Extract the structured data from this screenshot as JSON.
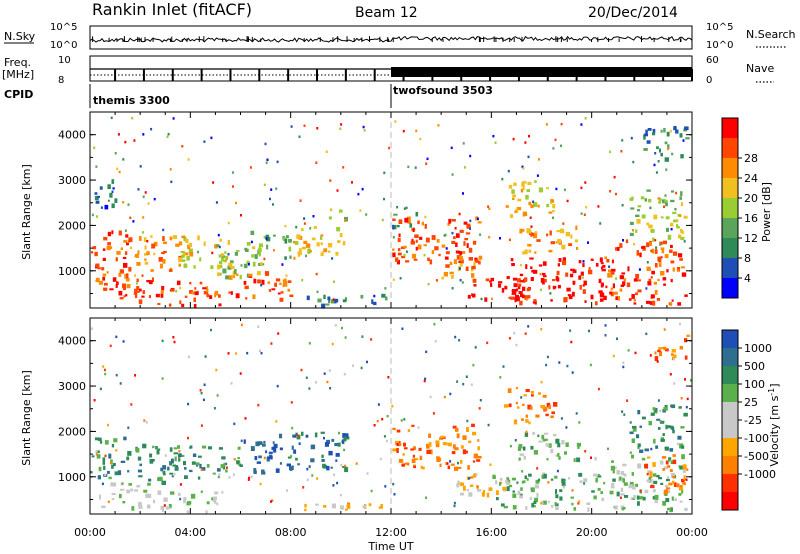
{
  "header": {
    "station": "Rankin Inlet (fitACF)",
    "beam": "Beam 12",
    "date": "20/Dec/2014"
  },
  "nsky_panel": {
    "label_left": "N.Sky",
    "label_right": "N.Search",
    "tick_top": "10^5",
    "tick_bottom": "10^0"
  },
  "freq_panel": {
    "label_left_1": "Freq.",
    "label_left_2": "[MHz]",
    "tick_left_top": "10",
    "tick_left_bottom": "8",
    "label_right": "Nave",
    "tick_right_top": "60",
    "tick_right_bottom": "0"
  },
  "cpid_panel": {
    "label": "CPID",
    "modes": [
      {
        "name": "themis 3300",
        "start_hour": 0
      },
      {
        "name": "twofsound 3503",
        "start_hour": 12
      }
    ]
  },
  "colors": {
    "power_scale": [
      "#0000ff",
      "#1f4fb4",
      "#2e8b57",
      "#5aa55a",
      "#9acd32",
      "#f0c020",
      "#ff8c00",
      "#ff4500",
      "#ff0000"
    ],
    "velocity_scale": [
      "#1f4fb4",
      "#2e6e8e",
      "#2e8b57",
      "#5ab04a",
      "#c8c8c8",
      "#c8c8c8",
      "#ffa500",
      "#ff7f00",
      "#ff3000",
      "#ff0000"
    ]
  },
  "chart_data": [
    {
      "type": "heatmap",
      "name": "power",
      "ylabel": "Slant Range [km]",
      "ylim": [
        180,
        4500
      ],
      "yticks": [
        1000,
        2000,
        3000,
        4000
      ],
      "xlim": [
        0,
        24
      ],
      "colorbar_label": "Power [dB]",
      "colorbar_ticks": [
        "4",
        "8",
        "12",
        "16",
        "20",
        "24",
        "28"
      ],
      "regions": [
        {
          "x0": 0.0,
          "x1": 1.6,
          "y0": 600,
          "y1": 1900,
          "level": 7
        },
        {
          "x0": 0.1,
          "x1": 1.0,
          "y0": 2400,
          "y1": 3100,
          "level": 1
        },
        {
          "x0": 1.0,
          "x1": 2.6,
          "y0": 300,
          "y1": 900,
          "level": 8
        },
        {
          "x0": 1.6,
          "x1": 3.6,
          "y0": 1000,
          "y1": 1800,
          "level": 6
        },
        {
          "x0": 2.6,
          "x1": 5.2,
          "y0": 250,
          "y1": 800,
          "level": 7
        },
        {
          "x0": 3.6,
          "x1": 5.5,
          "y0": 1100,
          "y1": 1800,
          "level": 5
        },
        {
          "x0": 5.0,
          "x1": 7.0,
          "y0": 900,
          "y1": 1900,
          "level": 4
        },
        {
          "x0": 5.5,
          "x1": 8.0,
          "y0": 400,
          "y1": 1000,
          "level": 7
        },
        {
          "x0": 6.5,
          "x1": 8.0,
          "y0": 1300,
          "y1": 1800,
          "level": 3
        },
        {
          "x0": 8.0,
          "x1": 10.2,
          "y0": 1300,
          "y1": 2000,
          "level": 5
        },
        {
          "x0": 8.5,
          "x1": 11.8,
          "y0": 250,
          "y1": 500,
          "level": 2
        },
        {
          "x0": 9.5,
          "x1": 10.2,
          "y0": 2100,
          "y1": 2400,
          "level": 4
        },
        {
          "x0": 12.0,
          "x1": 15.5,
          "y0": 1200,
          "y1": 2200,
          "level": 7
        },
        {
          "x0": 12.0,
          "x1": 13.0,
          "y0": 2000,
          "y1": 2300,
          "level": 2
        },
        {
          "x0": 14.0,
          "x1": 15.5,
          "y0": 800,
          "y1": 1400,
          "level": 6
        },
        {
          "x0": 15.0,
          "x1": 17.5,
          "y0": 400,
          "y1": 900,
          "level": 8
        },
        {
          "x0": 16.5,
          "x1": 20.5,
          "y0": 300,
          "y1": 1300,
          "level": 8
        },
        {
          "x0": 17.0,
          "x1": 19.5,
          "y0": 1400,
          "y1": 2000,
          "level": 6
        },
        {
          "x0": 16.5,
          "x1": 18.5,
          "y0": 2200,
          "y1": 3000,
          "level": 5
        },
        {
          "x0": 20.5,
          "x1": 23.7,
          "y0": 300,
          "y1": 1700,
          "level": 7
        },
        {
          "x0": 21.5,
          "x1": 23.7,
          "y0": 1700,
          "y1": 2800,
          "level": 4
        },
        {
          "x0": 22.0,
          "x1": 23.8,
          "y0": 3500,
          "y1": 4200,
          "level": 2
        }
      ]
    },
    {
      "type": "heatmap",
      "name": "velocity",
      "ylabel": "Slant Range [km]",
      "ylim": [
        180,
        4500
      ],
      "yticks": [
        1000,
        2000,
        3000,
        4000
      ],
      "xlim": [
        0,
        24
      ],
      "xlabel": "Time UT",
      "xticks": [
        "00:00",
        "04:00",
        "08:00",
        "12:00",
        "16:00",
        "20:00",
        "00:00"
      ],
      "colorbar_label": "Velocity [m s",
      "colorbar_label_sup": "-1",
      "colorbar_label_end": "]",
      "colorbar_ticks": [
        "1000",
        "500",
        "100",
        "25",
        "-25",
        "-100",
        "-500",
        "-1000"
      ],
      "regions": [
        {
          "x0": 0.0,
          "x1": 1.4,
          "y0": 1000,
          "y1": 1900,
          "level": 2
        },
        {
          "x0": 0.3,
          "x1": 2.5,
          "y0": 350,
          "y1": 900,
          "level": 4
        },
        {
          "x0": 1.4,
          "x1": 3.5,
          "y0": 900,
          "y1": 1800,
          "level": 2
        },
        {
          "x0": 2.5,
          "x1": 5.0,
          "y0": 250,
          "y1": 700,
          "level": 4
        },
        {
          "x0": 3.5,
          "x1": 6.0,
          "y0": 1000,
          "y1": 1700,
          "level": 2
        },
        {
          "x0": 6.0,
          "x1": 7.5,
          "y0": 1100,
          "y1": 1900,
          "level": 0
        },
        {
          "x0": 7.5,
          "x1": 10.2,
          "y0": 1200,
          "y1": 2000,
          "level": 1
        },
        {
          "x0": 8.5,
          "x1": 11.8,
          "y0": 250,
          "y1": 450,
          "level": 6
        },
        {
          "x0": 12.0,
          "x1": 15.5,
          "y0": 1200,
          "y1": 2200,
          "level": 7
        },
        {
          "x0": 14.5,
          "x1": 16.5,
          "y0": 500,
          "y1": 1100,
          "level": 6
        },
        {
          "x0": 16.0,
          "x1": 20.0,
          "y0": 300,
          "y1": 1100,
          "level": 3
        },
        {
          "x0": 17.0,
          "x1": 19.5,
          "y0": 1400,
          "y1": 2000,
          "level": 3
        },
        {
          "x0": 16.5,
          "x1": 18.5,
          "y0": 2200,
          "y1": 3000,
          "level": 7
        },
        {
          "x0": 20.0,
          "x1": 23.7,
          "y0": 300,
          "y1": 1500,
          "level": 3
        },
        {
          "x0": 22.0,
          "x1": 23.7,
          "y0": 700,
          "y1": 1500,
          "level": 7
        },
        {
          "x0": 21.5,
          "x1": 23.7,
          "y0": 1600,
          "y1": 2600,
          "level": 2
        },
        {
          "x0": 22.5,
          "x1": 23.8,
          "y0": 3600,
          "y1": 4200,
          "level": 7
        }
      ]
    }
  ]
}
